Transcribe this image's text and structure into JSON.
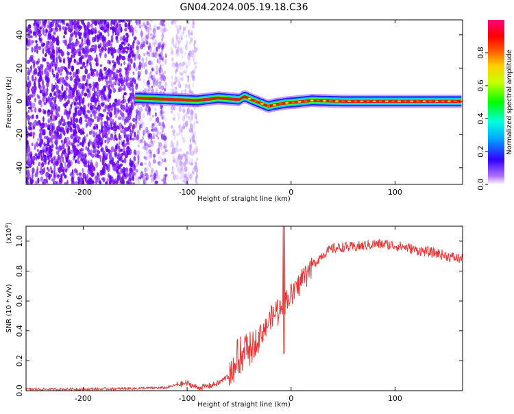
{
  "title": "GN04.2024.005.19.18.C36",
  "chart_data": [
    {
      "type": "heatmap",
      "xlabel": "Height of straight line (km)",
      "ylabel": "Frequency (Hz)",
      "xlim": [
        -255,
        165
      ],
      "ylim": [
        -50,
        49
      ],
      "xticks": [
        -200,
        -100,
        0,
        100
      ],
      "yticks": [
        -40,
        -20,
        0,
        20,
        40
      ],
      "colorbar": {
        "label": "Normalized spectral amplitude",
        "range": [
          0,
          1
        ],
        "ticks": [
          "0.0",
          "0.2",
          "0.4",
          "0.6",
          "0.8"
        ]
      },
      "ridge": [
        {
          "x": -150,
          "y": 2
        },
        {
          "x": -130,
          "y": 1.5
        },
        {
          "x": -110,
          "y": 1
        },
        {
          "x": -90,
          "y": 0.5
        },
        {
          "x": -70,
          "y": 2
        },
        {
          "x": -60,
          "y": 1.5
        },
        {
          "x": -50,
          "y": 1
        },
        {
          "x": -45,
          "y": 3
        },
        {
          "x": -38,
          "y": 1
        },
        {
          "x": -30,
          "y": -1
        },
        {
          "x": -22,
          "y": -3
        },
        {
          "x": -15,
          "y": -2
        },
        {
          "x": -5,
          "y": -1
        },
        {
          "x": 5,
          "y": -0.5
        },
        {
          "x": 20,
          "y": 0.5
        },
        {
          "x": 50,
          "y": 0
        },
        {
          "x": 100,
          "y": 0
        },
        {
          "x": 165,
          "y": 0
        }
      ]
    },
    {
      "type": "line",
      "xlabel": "Height of straight line (km)",
      "ylabel": "SNR (10 * v/v)",
      "scale_label": "(x10",
      "scale_exp": "4",
      "scale_close": ")",
      "xlim": [
        -255,
        165
      ],
      "ylim": [
        0,
        1.1
      ],
      "xticks": [
        -200,
        -100,
        0,
        100
      ],
      "yticks": [
        "0.0",
        "0.2",
        "0.4",
        "0.6",
        "0.8",
        "1.0"
      ],
      "series": [
        {
          "color": "#ee3333",
          "x": [
            -255,
            -200,
            -150,
            -120,
            -110,
            -100,
            -90,
            -80,
            -70,
            -60,
            -55,
            -50,
            -45,
            -40,
            -35,
            -30,
            -25,
            -20,
            -15,
            -10,
            -5,
            0,
            5,
            10,
            15,
            20,
            25,
            30,
            35,
            40,
            50,
            60,
            70,
            80,
            90,
            100,
            110,
            120,
            130,
            140,
            150,
            165
          ],
          "y": [
            0.01,
            0.01,
            0.015,
            0.02,
            0.04,
            0.05,
            0.02,
            0.03,
            0.05,
            0.1,
            0.14,
            0.17,
            0.22,
            0.27,
            0.32,
            0.38,
            0.42,
            0.48,
            0.52,
            0.56,
            0.6,
            0.64,
            0.68,
            0.74,
            0.8,
            0.84,
            0.87,
            0.91,
            0.93,
            0.95,
            0.96,
            0.96,
            0.97,
            0.98,
            0.98,
            0.97,
            0.96,
            0.94,
            0.93,
            0.92,
            0.9,
            0.88
          ]
        }
      ]
    }
  ]
}
